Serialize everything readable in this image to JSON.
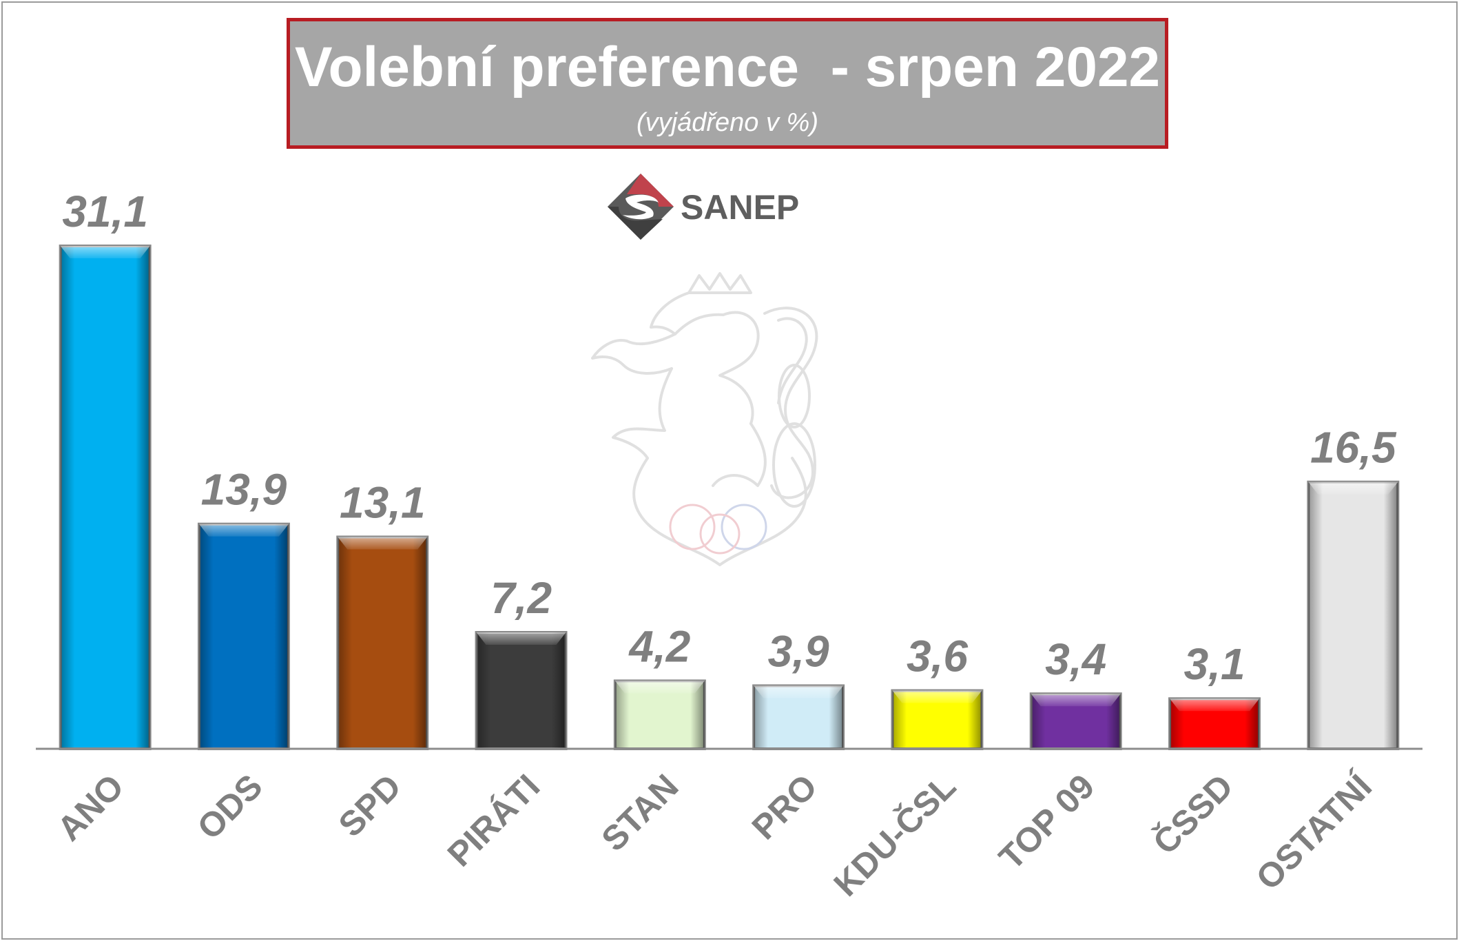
{
  "header": {
    "title": "Volební preference  - srpen 2022",
    "subtitle": "(vyjádřeno v %)"
  },
  "logo": {
    "text": "SANEP",
    "icon": "sanep-diamond-icon",
    "colors": {
      "red": "#c0434c",
      "gray": "#555555"
    }
  },
  "watermark": {
    "icon": "czech-lion-emblem-icon"
  },
  "colors": {
    "title_background": "#a6a6a6",
    "title_border": "#b81c22",
    "label_gray": "#7f7f7f",
    "axis_line": "#8c8c8c"
  },
  "chart_data": {
    "type": "bar",
    "title": "Volební preference  - srpen 2022",
    "subtitle": "(vyjádřeno v %)",
    "xlabel": "",
    "ylabel": "",
    "ylim": [
      0,
      31.1
    ],
    "grid": false,
    "categories": [
      "ANO",
      "ODS",
      "SPD",
      "PIRÁTI",
      "STAN",
      "PRO",
      "KDU-ČSL",
      "TOP 09",
      "ČSSD",
      "OSTATNÍ"
    ],
    "values": [
      31.1,
      13.9,
      13.1,
      7.2,
      4.2,
      3.9,
      3.6,
      3.4,
      3.1,
      16.5
    ],
    "value_labels": [
      "31,1",
      "13,9",
      "13,1",
      "7,2",
      "4,2",
      "3,9",
      "3,6",
      "3,4",
      "3,1",
      "16,5"
    ],
    "bar_colors": [
      "#00b0f0",
      "#0070c0",
      "#a64d10",
      "#3c3c3c",
      "#e2f5cf",
      "#d0ecf7",
      "#ffff00",
      "#7030a0",
      "#ff0000",
      "#e6e6e6"
    ]
  }
}
